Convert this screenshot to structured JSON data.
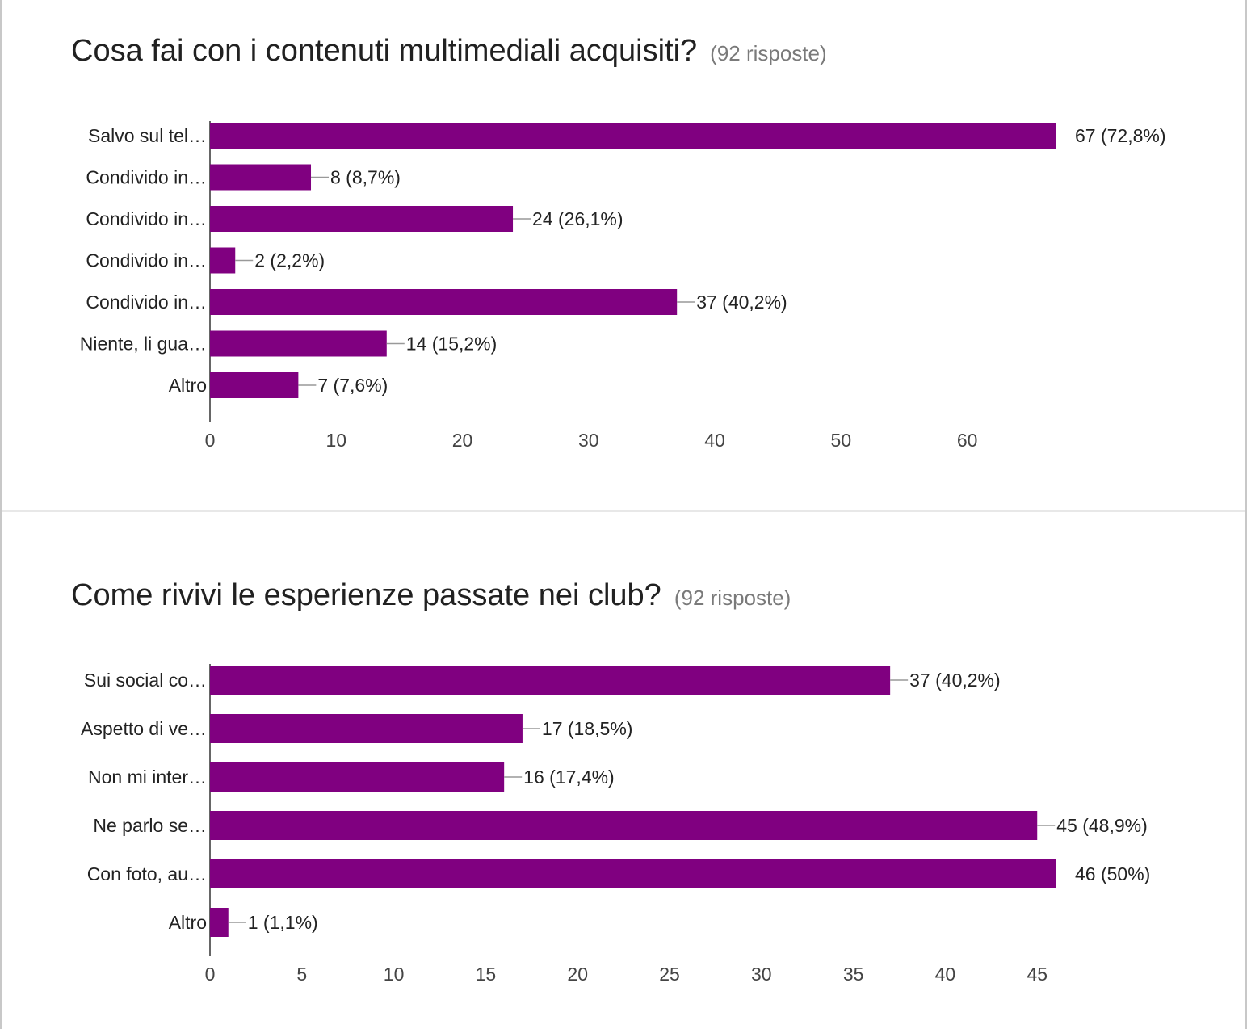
{
  "questions": [
    {
      "title": "Cosa fai con i contenuti multimediali acquisiti?",
      "responses": "(92 risposte)"
    },
    {
      "title": "Come rivivi le esperienze passate nei club?",
      "responses": "(92 risposte)"
    }
  ],
  "colors": {
    "bar": "#800080",
    "axis": "#333333",
    "leader": "#999999"
  },
  "chart_data": [
    {
      "type": "bar",
      "orientation": "horizontal",
      "title": "Cosa fai con i contenuti multimediali acquisiti?",
      "categories": [
        "Salvo sul tel…",
        "Condivido in…",
        "Condivido in…",
        "Condivido in…",
        "Condivido in…",
        "Niente, li gua…",
        "Altro"
      ],
      "values": [
        67,
        8,
        24,
        2,
        37,
        14,
        7
      ],
      "labels": [
        "67 (72,8%)",
        "8 (8,7%)",
        "24 (26,1%)",
        "2 (2,2%)",
        "37 (40,2%)",
        "14 (15,2%)",
        "7 (7,6%)"
      ],
      "xticks": [
        0,
        10,
        20,
        30,
        40,
        50,
        60
      ],
      "xlim": [
        0,
        67
      ],
      "grid": false,
      "legend": "none"
    },
    {
      "type": "bar",
      "orientation": "horizontal",
      "title": "Come rivivi le esperienze passate nei club?",
      "categories": [
        "Sui social co…",
        "Aspetto di ve…",
        "Non mi inter…",
        "Ne parlo se…",
        "Con foto, au…",
        "Altro"
      ],
      "values": [
        37,
        17,
        16,
        45,
        46,
        1
      ],
      "labels": [
        "37 (40,2%)",
        "17 (18,5%)",
        "16 (17,4%)",
        "45 (48,9%)",
        "46 (50%)",
        "1 (1,1%)"
      ],
      "xticks": [
        0,
        5,
        10,
        15,
        20,
        25,
        30,
        35,
        40,
        45
      ],
      "xlim": [
        0,
        46
      ],
      "grid": false,
      "legend": "none"
    }
  ]
}
